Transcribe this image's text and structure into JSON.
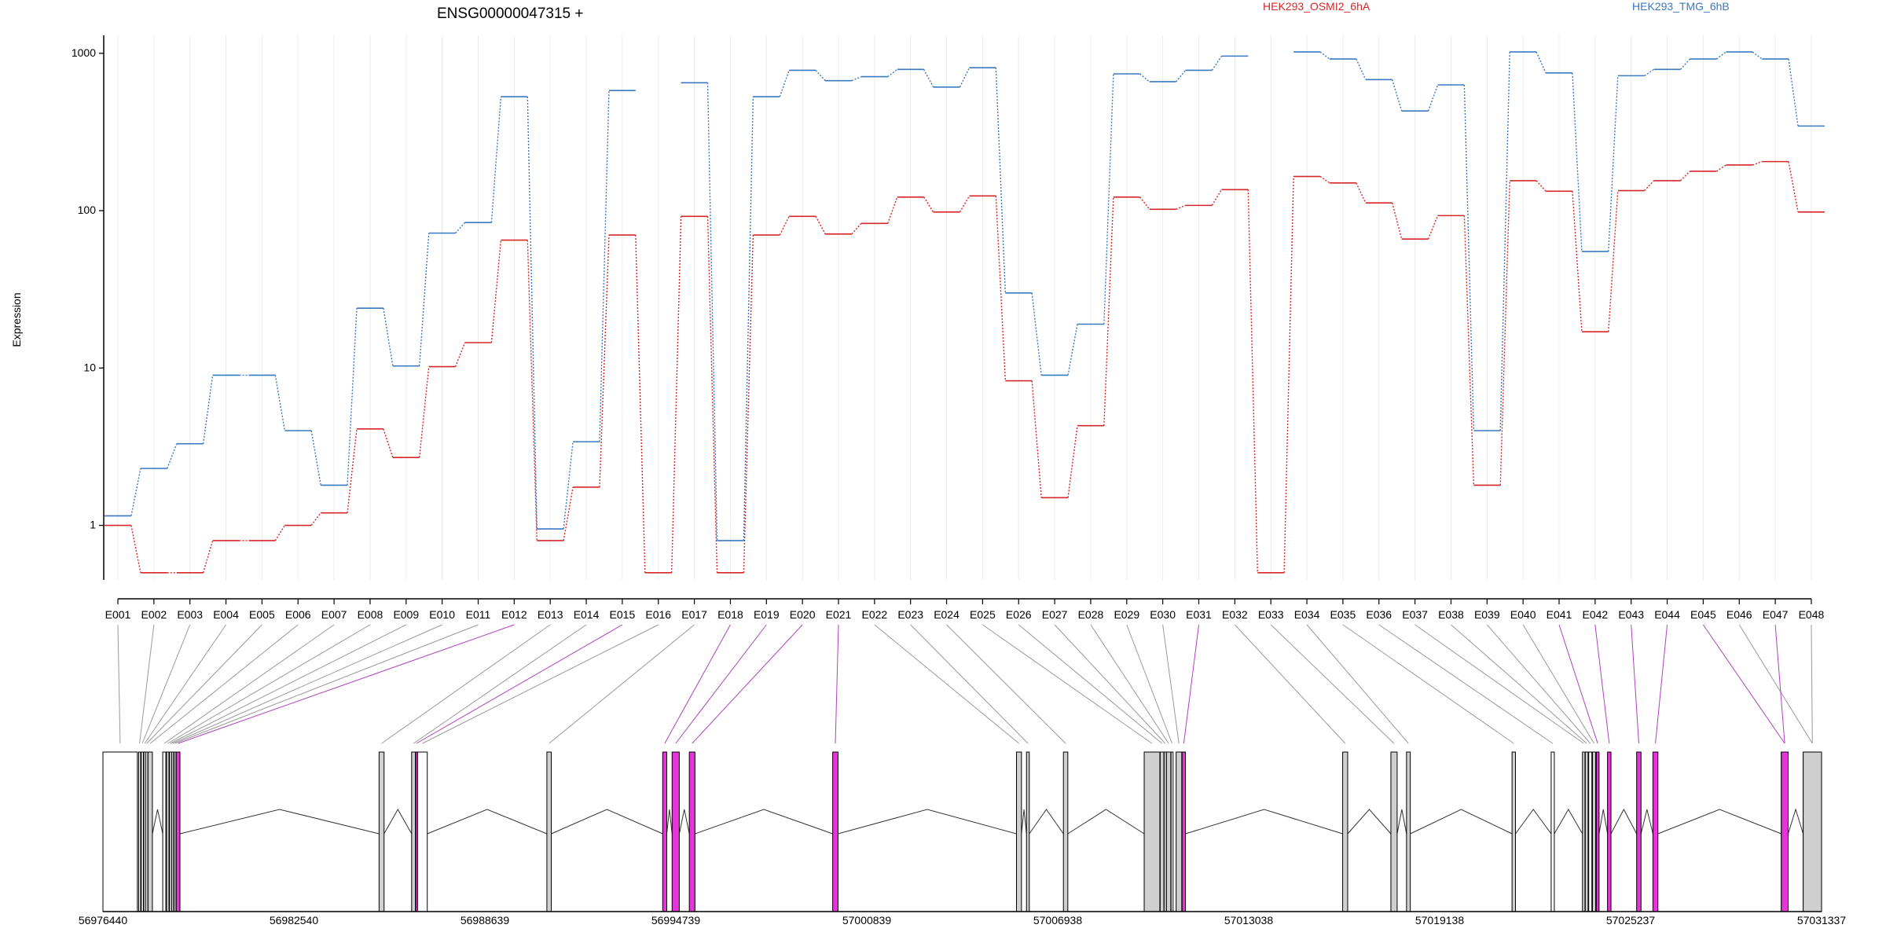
{
  "chart_data": {
    "type": "line",
    "title": "ENSG00000047315 +",
    "ylabel": "Expression",
    "y_scale": "log",
    "ylim": [
      0.45,
      1300
    ],
    "y_ticks": [
      {
        "value": 1,
        "label": "1"
      },
      {
        "value": 10,
        "label": "10"
      },
      {
        "value": 100,
        "label": "100"
      },
      {
        "value": 1000,
        "label": "1000"
      }
    ],
    "grid": "vertical",
    "legend": "top",
    "categories": [
      "E001",
      "E002",
      "E003",
      "E004",
      "E005",
      "E006",
      "E007",
      "E008",
      "E009",
      "E010",
      "E011",
      "E012",
      "E013",
      "E014",
      "E015",
      "E016",
      "E017",
      "E018",
      "E019",
      "E020",
      "E021",
      "E022",
      "E023",
      "E024",
      "E025",
      "E026",
      "E027",
      "E028",
      "E029",
      "E030",
      "E031",
      "E032",
      "E033",
      "E034",
      "E035",
      "E036",
      "E037",
      "E038",
      "E039",
      "E040",
      "E041",
      "E042",
      "E043",
      "E044",
      "E045",
      "E046",
      "E047",
      "E048"
    ],
    "series": [
      {
        "name": "HEK293_OSMI2_6hA",
        "color": "#d62728",
        "values": [
          1.0,
          0.5,
          0.5,
          0.8,
          0.8,
          1.0,
          1.2,
          4.1,
          2.7,
          10.2,
          14.5,
          65,
          0.8,
          1.75,
          70,
          0.5,
          92,
          0.5,
          70,
          92,
          71,
          83,
          122,
          98,
          124,
          8.3,
          1.5,
          4.3,
          122,
          102,
          108,
          136,
          0.5,
          165,
          150,
          112,
          66,
          93,
          1.8,
          155,
          133,
          17,
          134,
          155,
          178,
          195,
          205,
          98
        ]
      },
      {
        "name": "HEK293_TMG_6hB",
        "color": "#3a78c2",
        "values": [
          1.15,
          2.3,
          3.3,
          9.0,
          9.0,
          4.0,
          1.8,
          24,
          10.3,
          72,
          84,
          530,
          0.95,
          3.4,
          580,
          null,
          650,
          0.8,
          530,
          780,
          670,
          710,
          790,
          610,
          810,
          30,
          9,
          19,
          740,
          660,
          780,
          960,
          null,
          1020,
          920,
          680,
          430,
          630,
          4.0,
          1020,
          750,
          55,
          720,
          790,
          920,
          1020,
          920,
          345
        ]
      }
    ],
    "genomic_axis": {
      "range": [
        56976440,
        57031337
      ],
      "tick_labels": [
        "56976440",
        "56982540",
        "56988639",
        "56994739",
        "57000839",
        "57006938",
        "57013038",
        "57019138",
        "57025237",
        "57031337"
      ]
    },
    "exons": [
      {
        "id": "E001",
        "start": 56976440,
        "end": 56977540,
        "type": "gene"
      },
      {
        "id": "E002",
        "start": 56977580,
        "end": 56977640,
        "type": "black"
      },
      {
        "id": "E003",
        "start": 56977665,
        "end": 56977730,
        "type": "black"
      },
      {
        "id": "E004",
        "start": 56977750,
        "end": 56977800,
        "type": "black"
      },
      {
        "id": "E005",
        "start": 56977810,
        "end": 56977870,
        "type": "black"
      },
      {
        "id": "E006",
        "start": 56977880,
        "end": 56978020,
        "type": "gray"
      },
      {
        "id": "E007",
        "start": 56978350,
        "end": 56978450,
        "type": "black"
      },
      {
        "id": "E008",
        "start": 56978470,
        "end": 56978550,
        "type": "gray"
      },
      {
        "id": "E009",
        "start": 56978570,
        "end": 56978620,
        "type": "black"
      },
      {
        "id": "E010",
        "start": 56978635,
        "end": 56978700,
        "type": "gray"
      },
      {
        "id": "E011",
        "start": 56978710,
        "end": 56978770,
        "type": "gray"
      },
      {
        "id": "E012",
        "start": 56978780,
        "end": 56978900,
        "type": "magenta"
      },
      {
        "id": "E013",
        "start": 56985260,
        "end": 56985420,
        "type": "gray"
      },
      {
        "id": "E014",
        "start": 56986300,
        "end": 56986420,
        "type": "gray"
      },
      {
        "id": "E015",
        "start": 56986430,
        "end": 56986480,
        "type": "magenta"
      },
      {
        "id": "E016",
        "start": 56986490,
        "end": 56986800,
        "type": "white"
      },
      {
        "id": "E017",
        "start": 56990620,
        "end": 56990760,
        "type": "gray"
      },
      {
        "id": "E018",
        "start": 56994320,
        "end": 56994450,
        "type": "magenta"
      },
      {
        "id": "E019",
        "start": 56994620,
        "end": 56994850,
        "type": "magenta"
      },
      {
        "id": "E020",
        "start": 56995170,
        "end": 56995350,
        "type": "magenta"
      },
      {
        "id": "E021",
        "start": 56999750,
        "end": 56999920,
        "type": "magenta"
      },
      {
        "id": "E022",
        "start": 57005620,
        "end": 57005780,
        "type": "gray"
      },
      {
        "id": "E023",
        "start": 57005940,
        "end": 57006030,
        "type": "gray"
      },
      {
        "id": "E024",
        "start": 57007120,
        "end": 57007260,
        "type": "gray"
      },
      {
        "id": "E025",
        "start": 57009700,
        "end": 57010200,
        "type": "gray"
      },
      {
        "id": "E026",
        "start": 57010210,
        "end": 57010330,
        "type": "gray"
      },
      {
        "id": "E027",
        "start": 57010340,
        "end": 57010400,
        "type": "black"
      },
      {
        "id": "E028",
        "start": 57010410,
        "end": 57010550,
        "type": "gray"
      },
      {
        "id": "E029",
        "start": 57010560,
        "end": 57010620,
        "type": "black"
      },
      {
        "id": "E030",
        "start": 57010720,
        "end": 57010900,
        "type": "gray"
      },
      {
        "id": "E031",
        "start": 57010910,
        "end": 57011020,
        "type": "magenta"
      },
      {
        "id": "E032",
        "start": 57016040,
        "end": 57016200,
        "type": "gray"
      },
      {
        "id": "E033",
        "start": 57017580,
        "end": 57017780,
        "type": "gray"
      },
      {
        "id": "E034",
        "start": 57018080,
        "end": 57018200,
        "type": "gray"
      },
      {
        "id": "E035",
        "start": 57021450,
        "end": 57021560,
        "type": "gray"
      },
      {
        "id": "E036",
        "start": 57022700,
        "end": 57022800,
        "type": "black"
      },
      {
        "id": "E037",
        "start": 57023700,
        "end": 57023780,
        "type": "gray"
      },
      {
        "id": "E038",
        "start": 57023790,
        "end": 57023880,
        "type": "gray"
      },
      {
        "id": "E039",
        "start": 57023900,
        "end": 57024000,
        "type": "black"
      },
      {
        "id": "E040",
        "start": 57024020,
        "end": 57024120,
        "type": "gray"
      },
      {
        "id": "E041",
        "start": 57024140,
        "end": 57024230,
        "type": "magenta"
      },
      {
        "id": "E042",
        "start": 57024500,
        "end": 57024610,
        "type": "magenta"
      },
      {
        "id": "E043",
        "start": 57025430,
        "end": 57025570,
        "type": "magenta"
      },
      {
        "id": "E044",
        "start": 57025950,
        "end": 57026110,
        "type": "magenta"
      },
      {
        "id": "E045",
        "start": 57030050,
        "end": 57030270,
        "type": "magenta"
      },
      {
        "id": "E046",
        "start": 57030750,
        "end": 57031337,
        "type": "gray"
      },
      {
        "id": "E047",
        "start": 57030050,
        "end": 57030270,
        "type": "magenta"
      },
      {
        "id": "E048",
        "start": 57030750,
        "end": 57031337,
        "type": "gray"
      }
    ],
    "colors": {
      "magenta": "#e535d9",
      "gray": "#cfcfcf",
      "black": "#000000",
      "connector_gray": "#999999",
      "connector_magenta": "#b040c0"
    }
  }
}
